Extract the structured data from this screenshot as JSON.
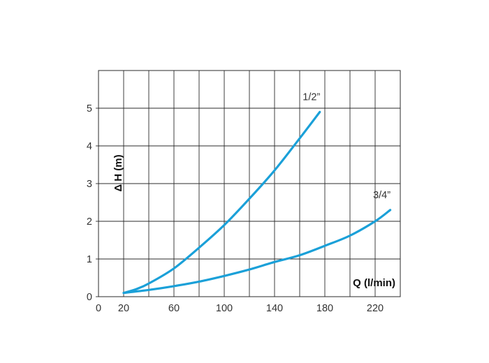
{
  "chart_data": {
    "type": "line",
    "xlabel": "Q (l/min)",
    "ylabel": "Δ H (m)",
    "xlim": [
      0,
      240
    ],
    "ylim": [
      0,
      6
    ],
    "x_ticks": [
      0,
      20,
      60,
      100,
      140,
      180,
      220
    ],
    "y_ticks": [
      0,
      1,
      2,
      3,
      4,
      5
    ],
    "grid": true,
    "line_color": "#1aa0d8",
    "series": [
      {
        "name": "1/2”",
        "x": [
          20,
          30,
          40,
          60,
          80,
          100,
          120,
          140,
          160,
          176
        ],
        "y": [
          0.1,
          0.2,
          0.35,
          0.75,
          1.3,
          1.9,
          2.6,
          3.35,
          4.2,
          4.9
        ]
      },
      {
        "name": "3/4”",
        "x": [
          20,
          40,
          60,
          80,
          100,
          120,
          140,
          160,
          180,
          200,
          220,
          232
        ],
        "y": [
          0.1,
          0.18,
          0.28,
          0.4,
          0.55,
          0.72,
          0.92,
          1.1,
          1.35,
          1.62,
          2.0,
          2.3
        ]
      }
    ]
  }
}
